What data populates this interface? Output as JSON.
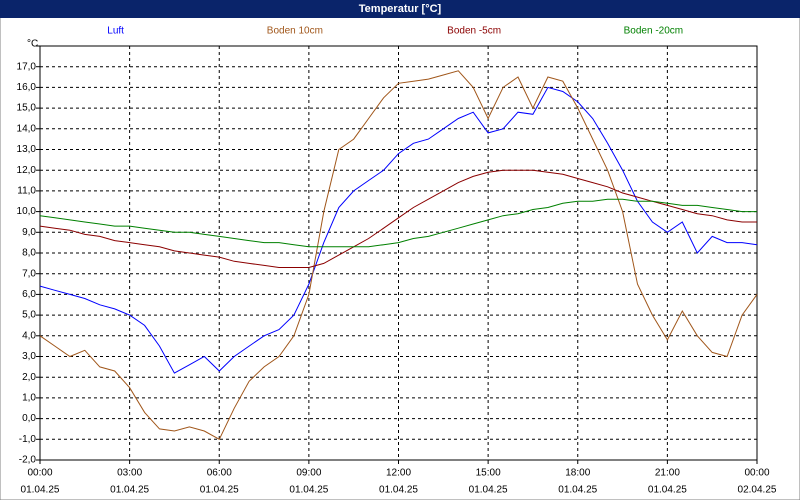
{
  "chart_data": {
    "type": "line",
    "title": "Temperatur [°C]",
    "y_unit": "°C",
    "legend": "top",
    "grid": true,
    "x": [
      0,
      0.5,
      1,
      1.5,
      2,
      2.5,
      3,
      3.5,
      4,
      4.5,
      5,
      5.5,
      6,
      6.5,
      7,
      7.5,
      8,
      8.5,
      9,
      9.5,
      10,
      10.5,
      11,
      11.5,
      12,
      12.5,
      13,
      13.5,
      14,
      14.5,
      15,
      15.5,
      16,
      16.5,
      17,
      17.5,
      18,
      18.5,
      19,
      19.5,
      20,
      20.5,
      21,
      21.5,
      22,
      22.5,
      23,
      23.5,
      24
    ],
    "xlim": [
      0,
      24
    ],
    "xticks": [
      {
        "value": 0,
        "label": "00:00"
      },
      {
        "value": 3,
        "label": "03:00"
      },
      {
        "value": 6,
        "label": "06:00"
      },
      {
        "value": 9,
        "label": "09:00"
      },
      {
        "value": 12,
        "label": "12:00"
      },
      {
        "value": 15,
        "label": "15:00"
      },
      {
        "value": 18,
        "label": "18:00"
      },
      {
        "value": 21,
        "label": "21:00"
      },
      {
        "value": 24,
        "label": "00:00"
      }
    ],
    "xtick_dates": [
      "01.04.25",
      "01.04.25",
      "01.04.25",
      "01.04.25",
      "01.04.25",
      "01.04.25",
      "01.04.25",
      "01.04.25",
      "02.04.25"
    ],
    "ylim": [
      -2,
      18
    ],
    "yticks": [
      {
        "value": -2,
        "label": "-2,0"
      },
      {
        "value": -1,
        "label": "-1,0"
      },
      {
        "value": 0,
        "label": "0,0"
      },
      {
        "value": 1,
        "label": "1,0"
      },
      {
        "value": 2,
        "label": "2,0"
      },
      {
        "value": 3,
        "label": "3,0"
      },
      {
        "value": 4,
        "label": "4,0"
      },
      {
        "value": 5,
        "label": "5,0"
      },
      {
        "value": 6,
        "label": "6,0"
      },
      {
        "value": 7,
        "label": "7,0"
      },
      {
        "value": 8,
        "label": "8,0"
      },
      {
        "value": 9,
        "label": "9,0"
      },
      {
        "value": 10,
        "label": "10,0"
      },
      {
        "value": 11,
        "label": "11,0"
      },
      {
        "value": 12,
        "label": "12,0"
      },
      {
        "value": 13,
        "label": "13,0"
      },
      {
        "value": 14,
        "label": "14,0"
      },
      {
        "value": 15,
        "label": "15,0"
      },
      {
        "value": 16,
        "label": "16,0"
      },
      {
        "value": 17,
        "label": "17,0"
      },
      {
        "value": 18,
        "label": ""
      }
    ],
    "series": [
      {
        "name": "Luft",
        "color": "#0000ff",
        "values": [
          6.4,
          6.2,
          6.0,
          5.8,
          5.5,
          5.3,
          5.0,
          4.5,
          3.5,
          2.2,
          2.6,
          3.0,
          2.3,
          3.0,
          3.5,
          4.0,
          4.3,
          5.0,
          6.5,
          8.5,
          10.2,
          11.0,
          11.5,
          12.0,
          12.8,
          13.3,
          13.5,
          14.0,
          14.5,
          14.8,
          13.8,
          14.0,
          14.8,
          14.7,
          16.0,
          15.8,
          15.3,
          14.5,
          13.3,
          12.0,
          10.5,
          9.5,
          9.0,
          9.5,
          8.0,
          8.8,
          8.5,
          8.5,
          8.4
        ]
      },
      {
        "name": "Boden 10cm",
        "color": "#a0561a",
        "values": [
          4.0,
          3.5,
          3.0,
          3.3,
          2.5,
          2.3,
          1.5,
          0.3,
          -0.5,
          -0.6,
          -0.4,
          -0.6,
          -1.0,
          0.5,
          1.8,
          2.5,
          3.0,
          4.0,
          6.0,
          10.0,
          13.0,
          13.5,
          14.5,
          15.5,
          16.2,
          16.3,
          16.4,
          16.6,
          16.8,
          16.0,
          14.5,
          16.0,
          16.5,
          15.0,
          16.5,
          16.3,
          15.0,
          13.5,
          12.0,
          10.0,
          6.5,
          5.0,
          3.8,
          5.2,
          4.0,
          3.2,
          3.0,
          5.0,
          6.0
        ]
      },
      {
        "name": "Boden -5cm",
        "color": "#8b0000",
        "values": [
          9.3,
          9.2,
          9.1,
          8.9,
          8.8,
          8.6,
          8.5,
          8.4,
          8.3,
          8.1,
          8.0,
          7.9,
          7.8,
          7.6,
          7.5,
          7.4,
          7.3,
          7.3,
          7.3,
          7.5,
          7.9,
          8.3,
          8.7,
          9.2,
          9.7,
          10.2,
          10.6,
          11.0,
          11.4,
          11.7,
          11.9,
          12.0,
          12.0,
          12.0,
          11.9,
          11.8,
          11.6,
          11.4,
          11.2,
          10.9,
          10.7,
          10.5,
          10.3,
          10.1,
          9.9,
          9.8,
          9.6,
          9.5,
          9.5
        ]
      },
      {
        "name": "Boden -20cm",
        "color": "#008000",
        "values": [
          9.8,
          9.7,
          9.6,
          9.5,
          9.4,
          9.3,
          9.3,
          9.2,
          9.1,
          9.0,
          9.0,
          8.9,
          8.8,
          8.7,
          8.6,
          8.5,
          8.5,
          8.4,
          8.3,
          8.3,
          8.3,
          8.3,
          8.3,
          8.4,
          8.5,
          8.7,
          8.8,
          9.0,
          9.2,
          9.4,
          9.6,
          9.8,
          9.9,
          10.1,
          10.2,
          10.4,
          10.5,
          10.5,
          10.6,
          10.6,
          10.5,
          10.5,
          10.4,
          10.3,
          10.3,
          10.2,
          10.1,
          10.0,
          10.0
        ]
      }
    ]
  }
}
